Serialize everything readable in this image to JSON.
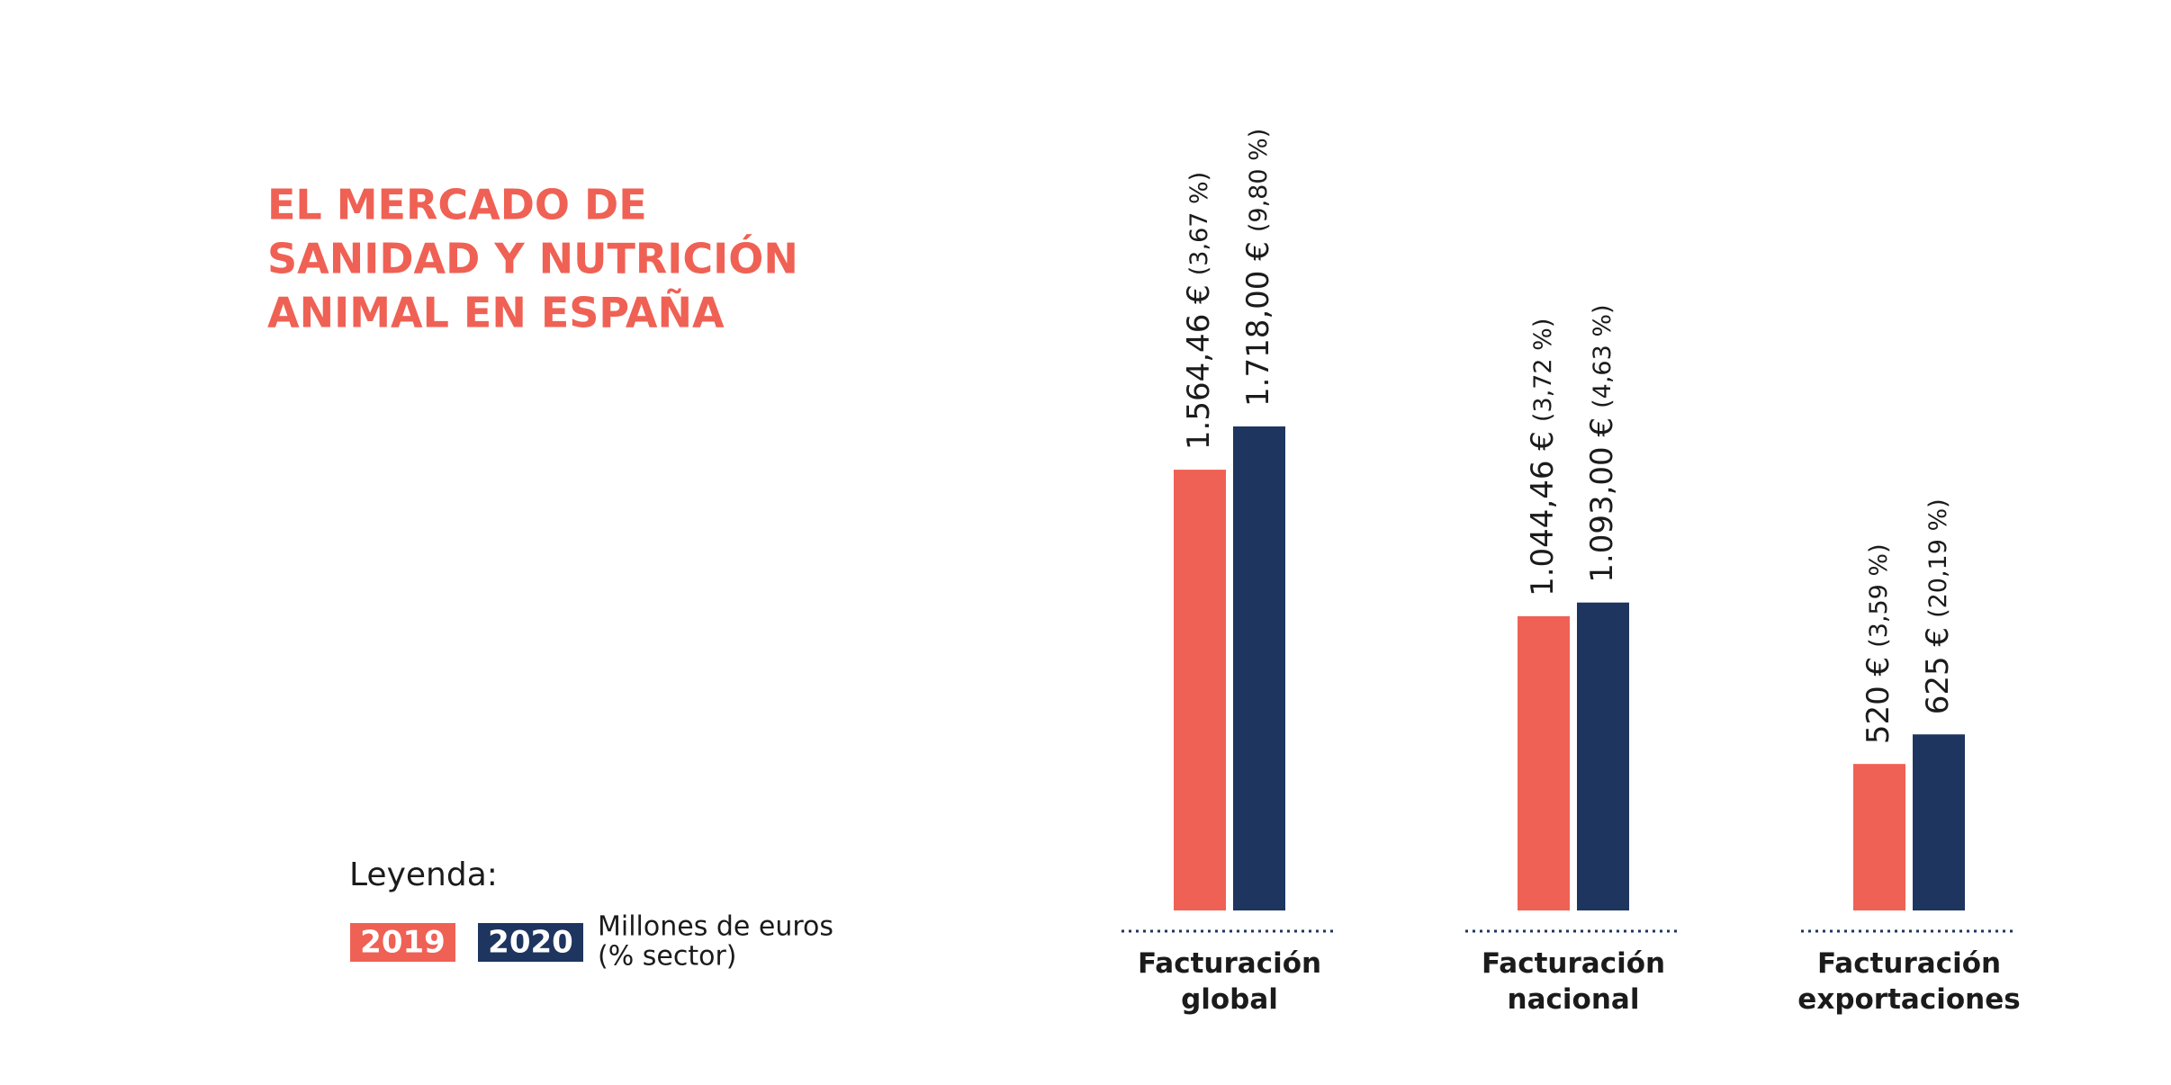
{
  "chart_data": {
    "type": "bar",
    "title": [
      "EL MERCADO DE",
      "SANIDAD Y NUTRICIÓN",
      "ANIMAL EN ESPAÑA"
    ],
    "categories": [
      "Facturación global",
      "Facturación nacional",
      "Facturación exportaciones"
    ],
    "series": [
      {
        "name": "2019",
        "color": "#ef6154",
        "values": [
          1564.46,
          1044.46,
          520
        ],
        "value_labels": [
          "1.564,46 €",
          "1.044,46 €",
          "520 €"
        ],
        "share_labels": [
          "(3,67 %)",
          "(3,72 %)",
          "(3,59 %)"
        ]
      },
      {
        "name": "2020",
        "color": "#1e3560",
        "values": [
          1718,
          1093,
          625
        ],
        "value_labels": [
          "1.718,00 €",
          "1.093,00 €",
          "625 €"
        ],
        "share_labels": [
          "(9,80 %)",
          "(4,63 %)",
          "(20,19 %)"
        ]
      }
    ],
    "legend_title": "Leyenda:",
    "legend_note": [
      "Millones de euros",
      "(% sector)"
    ]
  }
}
